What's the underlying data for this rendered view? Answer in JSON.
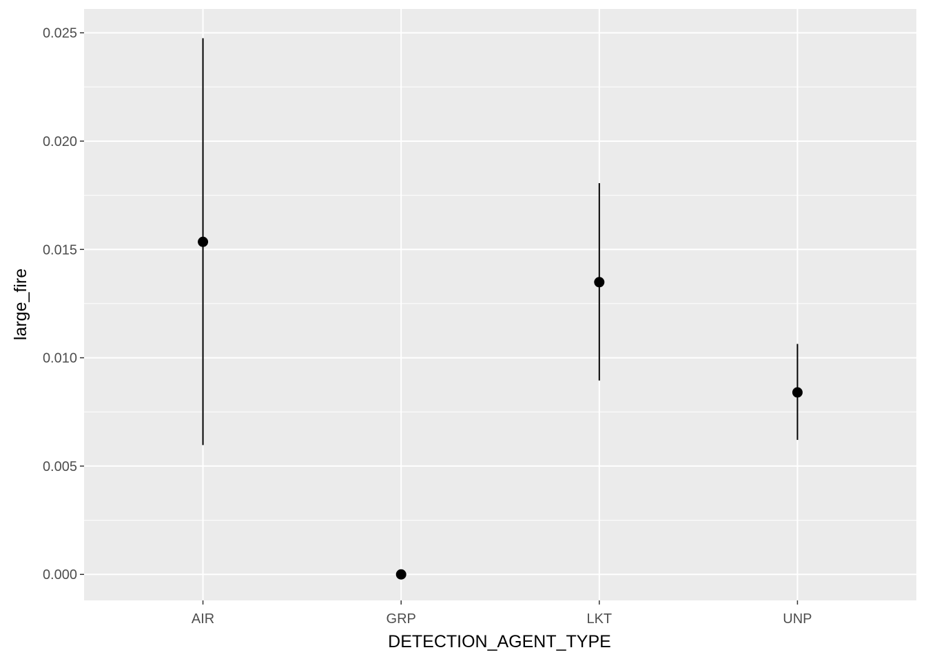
{
  "chart_data": {
    "type": "scatter",
    "subtype": "pointrange",
    "title": "",
    "xlabel": "DETECTION_AGENT_TYPE",
    "ylabel": "large_fire",
    "categories": [
      "AIR",
      "GRP",
      "LKT",
      "UNP"
    ],
    "points": [
      {
        "category": "AIR",
        "y": 0.01535,
        "ymin": 0.00597,
        "ymax": 0.02475
      },
      {
        "category": "GRP",
        "y": 0.0,
        "ymin": 0.0,
        "ymax": 0.0
      },
      {
        "category": "LKT",
        "y": 0.01349,
        "ymin": 0.00895,
        "ymax": 0.01806
      },
      {
        "category": "UNP",
        "y": 0.0084,
        "ymin": 0.00621,
        "ymax": 0.01064
      }
    ],
    "yticks": [
      0.0,
      0.005,
      0.01,
      0.015,
      0.02,
      0.025
    ],
    "ytick_labels": [
      "0.000",
      "0.005",
      "0.010",
      "0.015",
      "0.020",
      "0.025"
    ],
    "ylim": [
      -0.0012,
      0.0261
    ],
    "grid": true,
    "legend": "none",
    "colors": {
      "panel": "#ebebeb",
      "grid": "#ffffff",
      "mark": "#000000",
      "tick_text": "#4d4d4d"
    }
  }
}
